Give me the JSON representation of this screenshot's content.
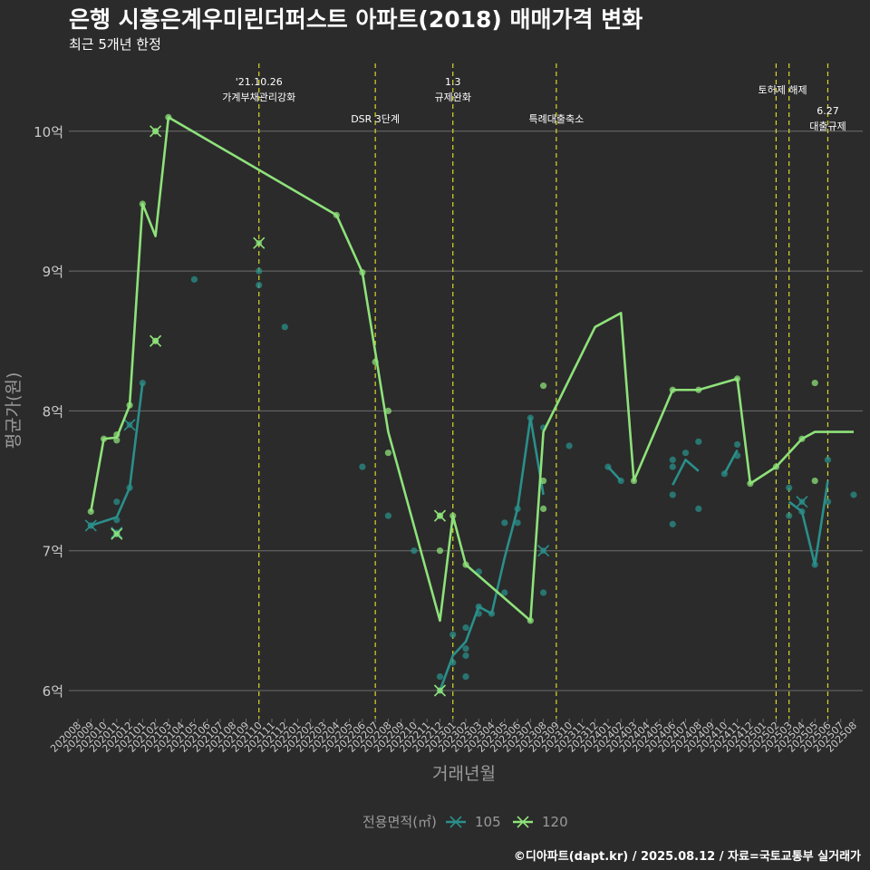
{
  "title": "은행 시흥은계우미린더퍼스트 아파트(2018) 매매가격 변화",
  "subtitle": "최근 5개년 한정",
  "caption": "©디아파트(dapt.kr) / 2025.08.12 / 자료=국토교통부 실거래가",
  "colors": {
    "background": "#2b2b2b",
    "grid": "#6e6e6e",
    "series_105": "#2a8f8a",
    "series_120": "#8ee27a",
    "event_line": "#d8d82a",
    "axis_text": "#c9c9c9",
    "axis_title": "#9a9a9a"
  },
  "chart_data": {
    "type": "line",
    "title": "은행 시흥은계우미린더퍼스트 아파트(2018) 매매가격 변화",
    "subtitle": "최근 5개년 한정",
    "xlabel": "거래년월",
    "ylabel": "평균가(원)",
    "ylim": [
      5.8,
      10.55
    ],
    "y_ticks": [
      6,
      7,
      8,
      9,
      10
    ],
    "y_tick_labels": [
      "6억",
      "7억",
      "8억",
      "9억",
      "10억"
    ],
    "x_categories": [
      "202008",
      "202009",
      "202010",
      "202011",
      "202012",
      "202101",
      "202102",
      "202103",
      "202104",
      "202105",
      "202106",
      "202107",
      "202108",
      "202109",
      "202110",
      "202111",
      "202112",
      "202201",
      "202202",
      "202203",
      "202204",
      "202205",
      "202206",
      "202207",
      "202208",
      "202209",
      "202210",
      "202211",
      "202212",
      "202301",
      "202302",
      "202303",
      "202304",
      "202305",
      "202306",
      "202307",
      "202308",
      "202309",
      "202310",
      "202311",
      "202312",
      "202401",
      "202402",
      "202403",
      "202404",
      "202405",
      "202406",
      "202407",
      "202408",
      "202409",
      "202410",
      "202411",
      "202412",
      "202501",
      "202502",
      "202503",
      "202504",
      "202505",
      "202506",
      "202507",
      "202508"
    ],
    "legend_title": "전용면적(㎡)",
    "legend": [
      "105",
      "120"
    ],
    "series": [
      {
        "name": "105",
        "line": [
          [
            "202009",
            7.18
          ],
          [
            "202011",
            7.24
          ],
          [
            "202012",
            7.45
          ],
          [
            "202101",
            8.2
          ],
          null,
          [
            "202212",
            6.0
          ],
          [
            "202301",
            6.25
          ],
          [
            "202302",
            6.35
          ],
          [
            "202303",
            6.6
          ],
          [
            "202304",
            6.55
          ],
          [
            "202305",
            6.95
          ],
          [
            "202306",
            7.3
          ],
          [
            "202307",
            7.95
          ],
          [
            "202308",
            7.4
          ],
          null,
          [
            "202401",
            7.6
          ],
          [
            "202402",
            7.5
          ],
          null,
          [
            "202406",
            7.47
          ],
          [
            "202407",
            7.65
          ],
          [
            "202408",
            7.57
          ],
          null,
          [
            "202410",
            7.55
          ],
          [
            "202411",
            7.72
          ],
          null,
          [
            "202503",
            7.35
          ],
          [
            "202504",
            7.28
          ],
          [
            "202505",
            6.9
          ],
          [
            "202506",
            7.5
          ]
        ],
        "points": [
          [
            "202009",
            7.18
          ],
          [
            "202011",
            7.12
          ],
          [
            "202011",
            7.22
          ],
          [
            "202011",
            7.35
          ],
          [
            "202012",
            7.45
          ],
          [
            "202101",
            8.2
          ],
          [
            "202105",
            8.94
          ],
          [
            "202110",
            9.0
          ],
          [
            "202110",
            8.9
          ],
          [
            "202112",
            8.6
          ],
          [
            "202206",
            7.6
          ],
          [
            "202208",
            7.25
          ],
          [
            "202210",
            7.0
          ],
          [
            "202212",
            6.1
          ],
          [
            "202212",
            6.0
          ],
          [
            "202301",
            6.4
          ],
          [
            "202301",
            6.2
          ],
          [
            "202302",
            6.45
          ],
          [
            "202302",
            6.3
          ],
          [
            "202302",
            6.1
          ],
          [
            "202302",
            6.25
          ],
          [
            "202303",
            6.55
          ],
          [
            "202303",
            6.6
          ],
          [
            "202303",
            6.85
          ],
          [
            "202304",
            6.55
          ],
          [
            "202305",
            6.7
          ],
          [
            "202305",
            7.2
          ],
          [
            "202306",
            7.2
          ],
          [
            "202306",
            7.3
          ],
          [
            "202307",
            7.95
          ],
          [
            "202308",
            7.88
          ],
          [
            "202308",
            6.7
          ],
          [
            "202310",
            7.75
          ],
          [
            "202401",
            7.6
          ],
          [
            "202402",
            7.5
          ],
          [
            "202406",
            7.65
          ],
          [
            "202406",
            7.6
          ],
          [
            "202406",
            7.4
          ],
          [
            "202406",
            7.19
          ],
          [
            "202407",
            7.7
          ],
          [
            "202408",
            7.78
          ],
          [
            "202408",
            7.3
          ],
          [
            "202410",
            7.55
          ],
          [
            "202411",
            7.68
          ],
          [
            "202411",
            7.76
          ],
          [
            "202503",
            7.45
          ],
          [
            "202503",
            7.25
          ],
          [
            "202504",
            7.28
          ],
          [
            "202505",
            6.9
          ],
          [
            "202506",
            7.35
          ],
          [
            "202506",
            7.65
          ],
          [
            "202508",
            7.4
          ]
        ],
        "cancelled": [
          [
            "202009",
            7.18
          ],
          [
            "202011",
            7.13
          ],
          [
            "202012",
            7.9
          ],
          [
            "202308",
            7.0
          ],
          [
            "202504",
            7.35
          ]
        ]
      },
      {
        "name": "120",
        "line": [
          [
            "202009",
            7.28
          ],
          [
            "202010",
            7.8
          ],
          [
            "202011",
            7.81
          ],
          [
            "202012",
            8.04
          ],
          [
            "202101",
            9.48
          ],
          [
            "202102",
            9.25
          ],
          [
            "202103",
            10.1
          ],
          [
            "202204",
            9.4
          ],
          [
            "202206",
            8.99
          ],
          [
            "202208",
            7.85
          ],
          [
            "202212",
            6.5
          ],
          [
            "202301",
            7.25
          ],
          [
            "202302",
            6.9
          ],
          [
            "202307",
            6.5
          ],
          [
            "202308",
            7.85
          ],
          [
            "202312",
            8.6
          ],
          [
            "202402",
            8.7
          ],
          [
            "202403",
            7.5
          ],
          [
            "202406",
            8.15
          ],
          [
            "202408",
            8.15
          ],
          [
            "202411",
            8.23
          ],
          [
            "202412",
            7.48
          ],
          [
            "202502",
            7.6
          ],
          [
            "202504",
            7.8
          ],
          [
            "202505",
            7.85
          ],
          [
            "202508",
            7.85
          ]
        ],
        "points": [
          [
            "202009",
            7.28
          ],
          [
            "202010",
            7.8
          ],
          [
            "202011",
            7.79
          ],
          [
            "202011",
            7.83
          ],
          [
            "202012",
            8.04
          ],
          [
            "202101",
            9.48
          ],
          [
            "202102",
            10.0
          ],
          [
            "202102",
            8.5
          ],
          [
            "202103",
            10.1
          ],
          [
            "202204",
            9.4
          ],
          [
            "202206",
            8.99
          ],
          [
            "202207",
            8.35
          ],
          [
            "202208",
            8.0
          ],
          [
            "202208",
            7.7
          ],
          [
            "202212",
            7.0
          ],
          [
            "202212",
            7.25
          ],
          [
            "202301",
            7.25
          ],
          [
            "202302",
            6.9
          ],
          [
            "202307",
            6.5
          ],
          [
            "202308",
            8.18
          ],
          [
            "202308",
            7.5
          ],
          [
            "202308",
            7.3
          ],
          [
            "202403",
            7.5
          ],
          [
            "202406",
            8.15
          ],
          [
            "202408",
            8.15
          ],
          [
            "202411",
            8.23
          ],
          [
            "202412",
            7.48
          ],
          [
            "202502",
            7.6
          ],
          [
            "202504",
            7.8
          ],
          [
            "202505",
            8.2
          ],
          [
            "202505",
            7.5
          ]
        ],
        "cancelled": [
          [
            "202011",
            7.12
          ],
          [
            "202102",
            10.0
          ],
          [
            "202102",
            8.5
          ],
          [
            "202110",
            9.2
          ],
          [
            "202212",
            7.25
          ],
          [
            "202212",
            6.0
          ]
        ]
      }
    ],
    "events": [
      {
        "month": "202110",
        "label_lines": [
          "'21.10.26",
          "가계부채관리강화"
        ],
        "level": 1
      },
      {
        "month": "202207",
        "label_lines": [
          "DSR 3단계"
        ],
        "level": 2
      },
      {
        "month": "202301",
        "label_lines": [
          "1.3",
          "규제완화"
        ],
        "level": 1
      },
      {
        "month": "202309",
        "label_lines": [
          "특례대출축소"
        ],
        "level": 2
      },
      {
        "month": "202502",
        "label_lines": [],
        "level": 1
      },
      {
        "month": "202503",
        "label_lines": [
          "토허제 해제"
        ],
        "level": 1,
        "label_at": "202502.5"
      },
      {
        "month": "202506",
        "label_lines": [
          "6.27",
          "대출규제"
        ],
        "level": 3
      }
    ]
  }
}
